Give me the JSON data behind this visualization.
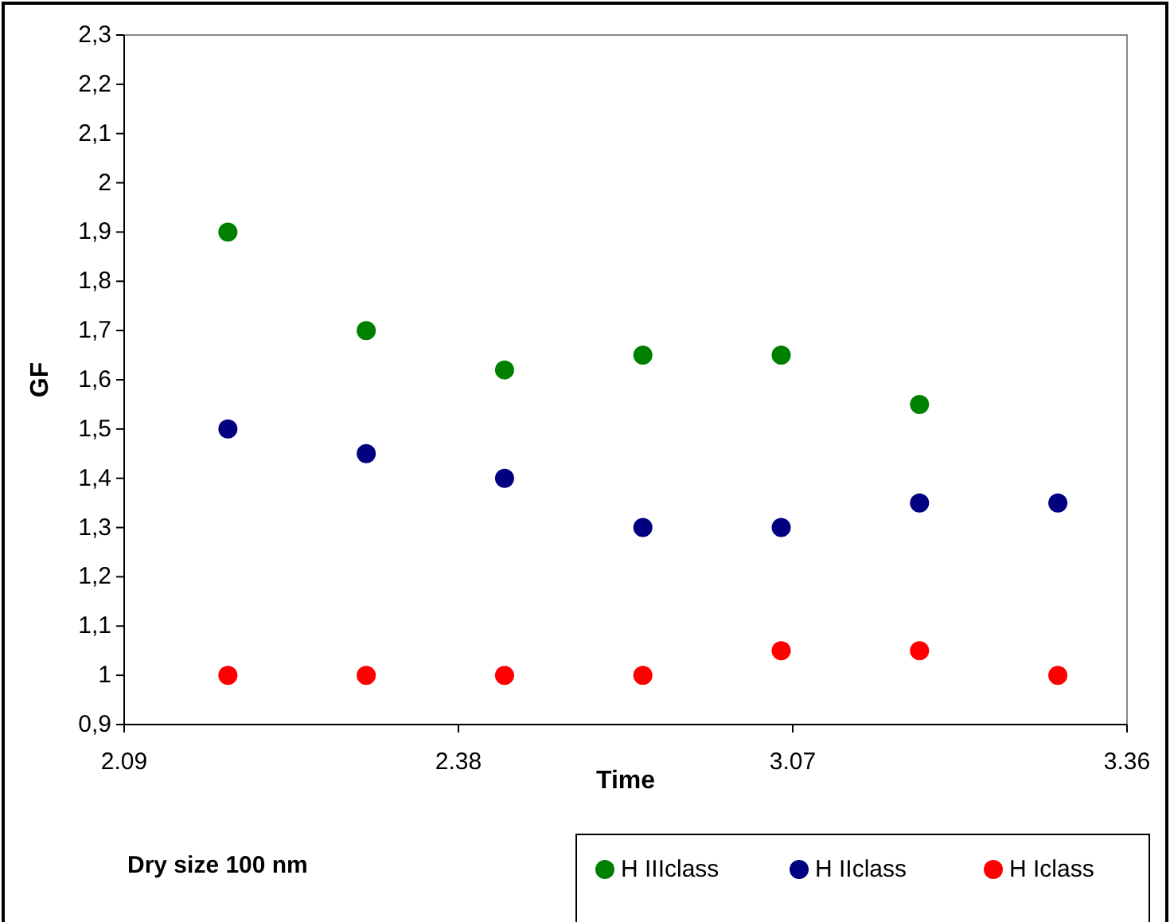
{
  "chart_data": {
    "type": "scatter",
    "xlabel": "Time",
    "ylabel": "GF",
    "annotations": [
      "Dry size 100 nm"
    ],
    "x": [
      "--01-01T02:18",
      "--01-01T02:30",
      "--01-01T02:42",
      "--01-01T02:54",
      "--01-01T03:06",
      "--01-01T03:18",
      "--01-01T03:30"
    ],
    "xlim": [
      "--01-01T02:09",
      "--01-01T03:36"
    ],
    "xticks": [
      {
        "value": "--01-01T02:09",
        "label": "2.09"
      },
      {
        "value": "--01-01T02:38",
        "label": "2.38"
      },
      {
        "value": "--01-01T03:07",
        "label": "3.07"
      },
      {
        "value": "--01-01T03:36",
        "label": "3.36"
      }
    ],
    "ylim": [
      0.9,
      2.3
    ],
    "yticks": [
      {
        "value": 0.9,
        "label": "0,9"
      },
      1,
      {
        "value": 1.1,
        "label": "1,1"
      },
      {
        "value": 1.2,
        "label": "1,2"
      },
      {
        "value": 1.3,
        "label": "1,3"
      },
      {
        "value": 1.4,
        "label": "1,4"
      },
      {
        "value": 1.5,
        "label": "1,5"
      },
      {
        "value": 1.6,
        "label": "1,6"
      },
      {
        "value": 1.7,
        "label": "1,7"
      },
      {
        "value": 1.8,
        "label": "1,8"
      },
      {
        "value": 1.9,
        "label": "1,9"
      },
      2,
      {
        "value": 2.1,
        "label": "2,1"
      },
      {
        "value": 2.2,
        "label": "2,2"
      },
      {
        "value": 2.3,
        "label": "2,3"
      }
    ],
    "series": [
      {
        "name": "H IIIclass",
        "color": "#008000",
        "values": [
          1.9,
          1.7,
          1.62,
          1.65,
          1.65,
          1.55,
          null
        ]
      },
      {
        "name": "H IIclass",
        "color": "#000080",
        "values": [
          1.5,
          1.45,
          1.4,
          1.3,
          1.3,
          1.35,
          1.35
        ]
      },
      {
        "name": "H Iclass",
        "color": "#ff0000",
        "values": [
          1,
          1,
          1,
          1,
          1.05,
          1.05,
          1
        ]
      }
    ],
    "marker": "circle",
    "grid": false,
    "legend": "bottom"
  }
}
